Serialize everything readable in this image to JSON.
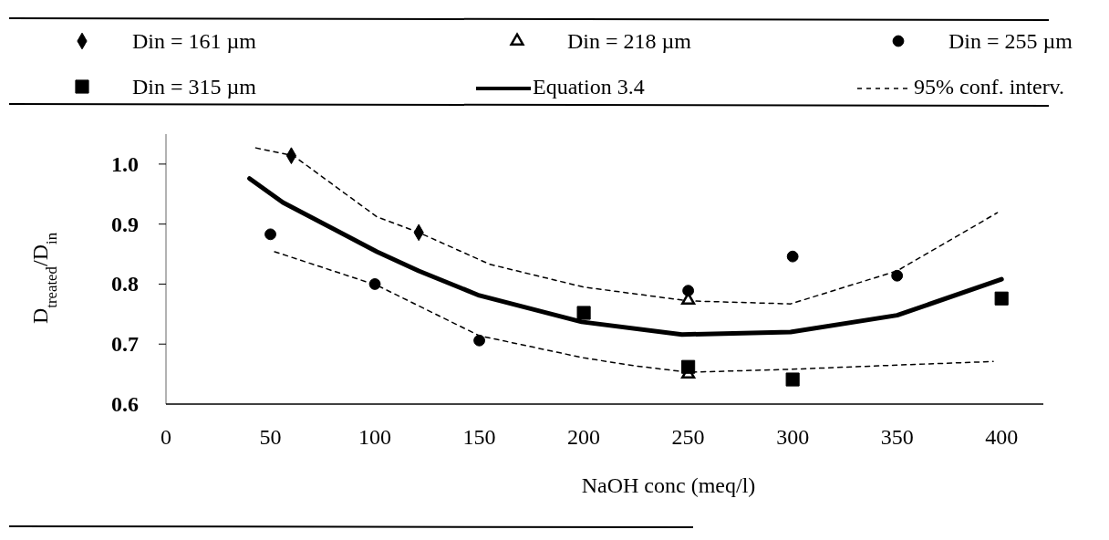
{
  "chart_data": {
    "type": "scatter",
    "xlabel": "NaOH conc (meq/l)",
    "ylabel": "D$_{treated}$/D$_{in}$",
    "xlim": [
      0,
      420
    ],
    "xticks": [
      0,
      50,
      100,
      150,
      200,
      250,
      300,
      350,
      400
    ],
    "ylim": [
      0.6,
      1.05
    ],
    "yticks": [
      0.6,
      0.7,
      0.8,
      0.9,
      {
        "value": 1,
        "label": "1.0"
      }
    ],
    "grid": false,
    "legend": "top",
    "series": [
      {
        "name": "Din = 161 µm",
        "type": "scatter",
        "marker": "diamond",
        "color": "#000000",
        "x": [
          60,
          121
        ],
        "values": [
          1.014,
          0.886
        ]
      },
      {
        "name": "Din = 218 µm",
        "type": "scatter",
        "marker": "triangle",
        "color": "#000000",
        "x": [
          250,
          250
        ],
        "values": [
          0.773,
          0.65
        ]
      },
      {
        "name": "Din = 255 µm",
        "type": "scatter",
        "marker": "circle",
        "color": "#000000",
        "x": [
          50,
          100,
          150,
          250,
          300,
          350
        ],
        "values": [
          0.883,
          0.8,
          0.706,
          0.789,
          0.846,
          0.814
        ]
      },
      {
        "name": "Din = 315 µm",
        "type": "scatter",
        "marker": "square",
        "color": "#000000",
        "x": [
          200,
          250,
          300,
          400
        ],
        "values": [
          0.752,
          0.662,
          0.641,
          0.776
        ]
      },
      {
        "name": "Equation 3.4",
        "type": "line",
        "line_style": "solid",
        "color": "#000000",
        "x": [
          40,
          56,
          101,
          121,
          150,
          199,
          247,
          299,
          350,
          400
        ],
        "values": [
          0.976,
          0.936,
          0.854,
          0.822,
          0.781,
          0.737,
          0.716,
          0.72,
          0.748,
          0.808
        ]
      },
      {
        "name": "95% conf. interv.",
        "type": "line",
        "line_style": "dashed",
        "color": "#000000",
        "x": [
          43,
          61,
          101,
          121,
          155,
          200,
          224,
          250,
          299,
          350,
          398
        ],
        "values": [
          1.027,
          1.014,
          0.912,
          0.886,
          0.833,
          0.795,
          0.784,
          0.772,
          0.767,
          0.822,
          0.919
        ]
      },
      {
        "type": "line",
        "line_style": "dashed",
        "color": "#000000",
        "x": [
          52,
          101,
          150,
          200,
          224,
          250,
          299,
          350,
          396
        ],
        "values": [
          0.854,
          0.798,
          0.714,
          0.677,
          0.664,
          0.653,
          0.658,
          0.665,
          0.671
        ]
      }
    ]
  }
}
